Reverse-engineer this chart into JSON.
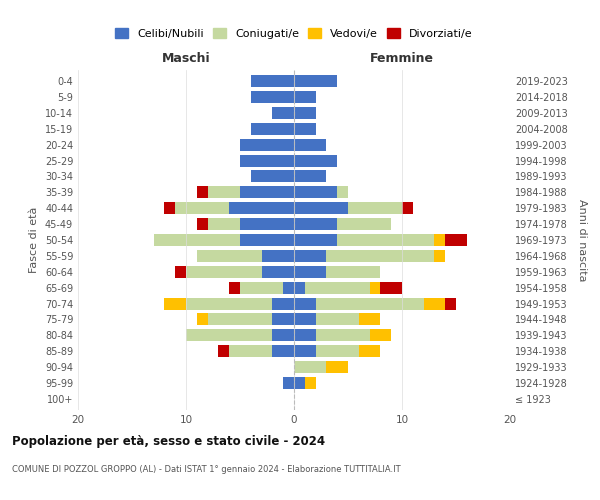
{
  "age_groups": [
    "100+",
    "95-99",
    "90-94",
    "85-89",
    "80-84",
    "75-79",
    "70-74",
    "65-69",
    "60-64",
    "55-59",
    "50-54",
    "45-49",
    "40-44",
    "35-39",
    "30-34",
    "25-29",
    "20-24",
    "15-19",
    "10-14",
    "5-9",
    "0-4"
  ],
  "birth_years": [
    "≤ 1923",
    "1924-1928",
    "1929-1933",
    "1934-1938",
    "1939-1943",
    "1944-1948",
    "1949-1953",
    "1954-1958",
    "1959-1963",
    "1964-1968",
    "1969-1973",
    "1974-1978",
    "1979-1983",
    "1984-1988",
    "1989-1993",
    "1994-1998",
    "1999-2003",
    "2004-2008",
    "2009-2013",
    "2014-2018",
    "2019-2023"
  ],
  "maschi_celibi": [
    0,
    1,
    0,
    2,
    2,
    2,
    2,
    1,
    3,
    3,
    5,
    5,
    6,
    5,
    4,
    5,
    5,
    4,
    2,
    4,
    4
  ],
  "maschi_coniugati": [
    0,
    0,
    0,
    4,
    8,
    6,
    8,
    4,
    7,
    6,
    8,
    3,
    5,
    3,
    0,
    0,
    0,
    0,
    0,
    0,
    0
  ],
  "maschi_vedovi": [
    0,
    0,
    0,
    0,
    0,
    1,
    2,
    0,
    0,
    0,
    0,
    0,
    0,
    0,
    0,
    0,
    0,
    0,
    0,
    0,
    0
  ],
  "maschi_divorziati": [
    0,
    0,
    0,
    1,
    0,
    0,
    0,
    1,
    1,
    0,
    0,
    1,
    1,
    1,
    0,
    0,
    0,
    0,
    0,
    0,
    0
  ],
  "femmine_celibi": [
    0,
    1,
    0,
    2,
    2,
    2,
    2,
    1,
    3,
    3,
    4,
    4,
    5,
    4,
    3,
    4,
    3,
    2,
    2,
    2,
    4
  ],
  "femmine_coniugati": [
    0,
    0,
    3,
    4,
    5,
    4,
    10,
    6,
    5,
    10,
    9,
    5,
    5,
    1,
    0,
    0,
    0,
    0,
    0,
    0,
    0
  ],
  "femmine_vedovi": [
    0,
    1,
    2,
    2,
    2,
    2,
    2,
    1,
    0,
    1,
    1,
    0,
    0,
    0,
    0,
    0,
    0,
    0,
    0,
    0,
    0
  ],
  "femmine_divorziati": [
    0,
    0,
    0,
    0,
    0,
    0,
    1,
    2,
    0,
    0,
    2,
    0,
    1,
    0,
    0,
    0,
    0,
    0,
    0,
    0,
    0
  ],
  "color_celibi": "#4472c4",
  "color_coniugati": "#c5d9a0",
  "color_vedovi": "#ffc000",
  "color_divorziati": "#c00000",
  "title_bold": "Popolazione per età, sesso e stato civile - 2024",
  "subtitle": "COMUNE DI POZZOL GROPPO (AL) - Dati ISTAT 1° gennaio 2024 - Elaborazione TUTTITALIA.IT",
  "ylabel": "Fasce di età",
  "ylabel_right": "Anni di nascita",
  "xlabel_left": "Maschi",
  "xlabel_right": "Femmine",
  "xlim": 20,
  "bg_color": "#ffffff",
  "legend_labels": [
    "Celibi/Nubili",
    "Coniugati/e",
    "Vedovi/e",
    "Divorziati/e"
  ]
}
